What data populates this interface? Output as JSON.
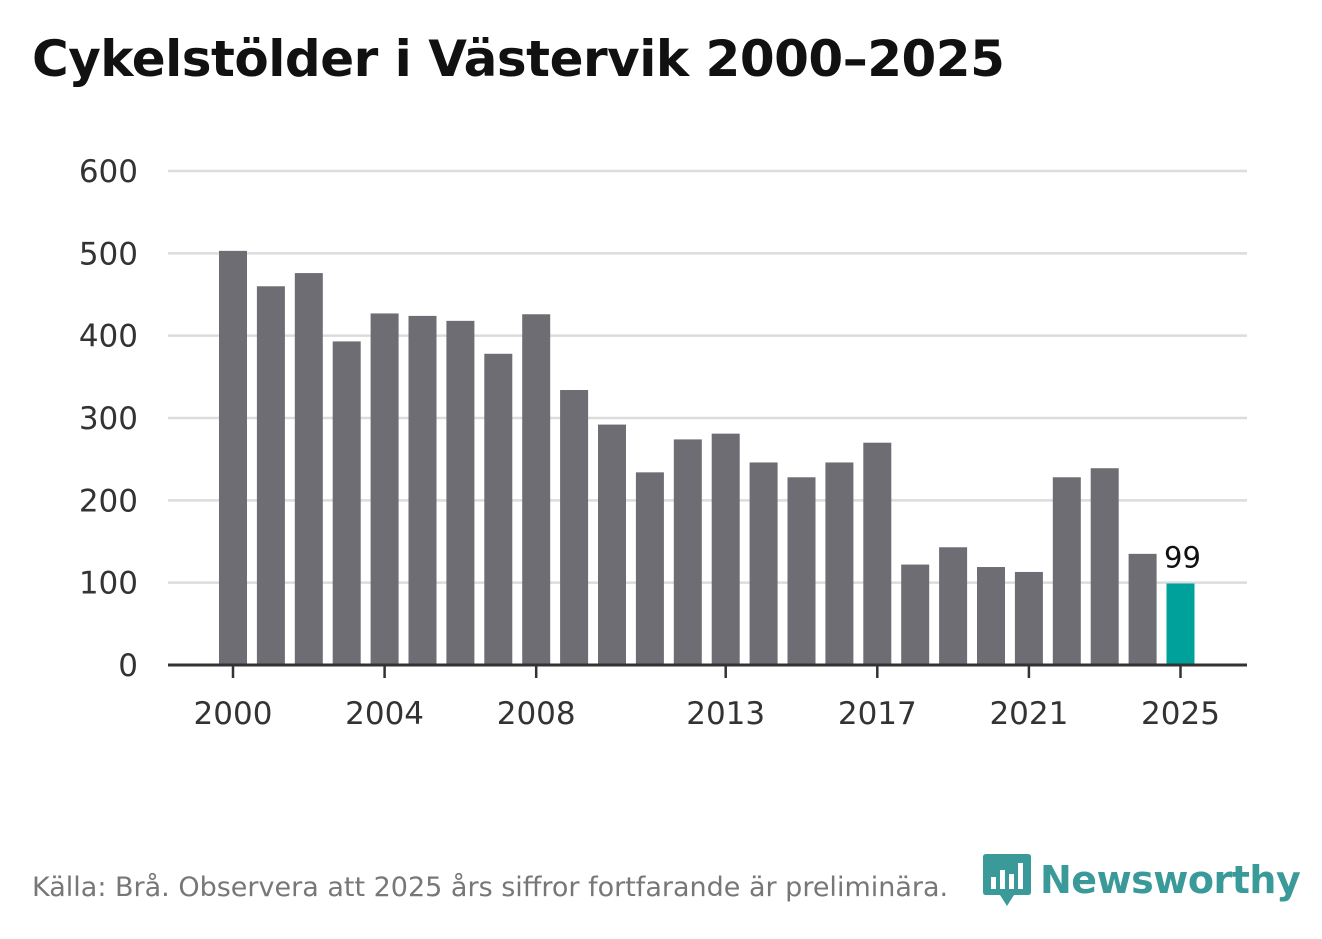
{
  "title": "Cykelstölder i Västervik 2000–2025",
  "source": "Källa: Brå. Observera att 2025 års siffror fortfarande är preliminära.",
  "brand": {
    "name": "Newsworthy",
    "color": "#3a9a9a"
  },
  "chart_data": {
    "type": "bar",
    "title": "Cykelstölder i Västervik 2000–2025",
    "xlabel": "",
    "ylabel": "",
    "ylim": [
      0,
      600
    ],
    "yticks": [
      0,
      100,
      200,
      300,
      400,
      500,
      600
    ],
    "xtick_labels": [
      "2000",
      "2004",
      "2008",
      "2013",
      "2017",
      "2021",
      "2025"
    ],
    "categories": [
      "2000",
      "2001",
      "2002",
      "2003",
      "2004",
      "2005",
      "2006",
      "2007",
      "2008",
      "2009",
      "2010",
      "2011",
      "2012",
      "2013",
      "2014",
      "2015",
      "2016",
      "2017",
      "2018",
      "2019",
      "2020",
      "2021",
      "2022",
      "2023",
      "2024",
      "2025"
    ],
    "values": [
      503,
      460,
      476,
      393,
      427,
      424,
      418,
      378,
      426,
      334,
      292,
      234,
      274,
      281,
      246,
      228,
      246,
      270,
      122,
      143,
      119,
      113,
      228,
      239,
      135,
      99
    ],
    "bar_color": "#6e6d73",
    "highlight_color": "#00a19a",
    "highlight_category": "2025",
    "annotations": [
      {
        "category": "2025",
        "text": "99"
      }
    ],
    "grid": true
  }
}
